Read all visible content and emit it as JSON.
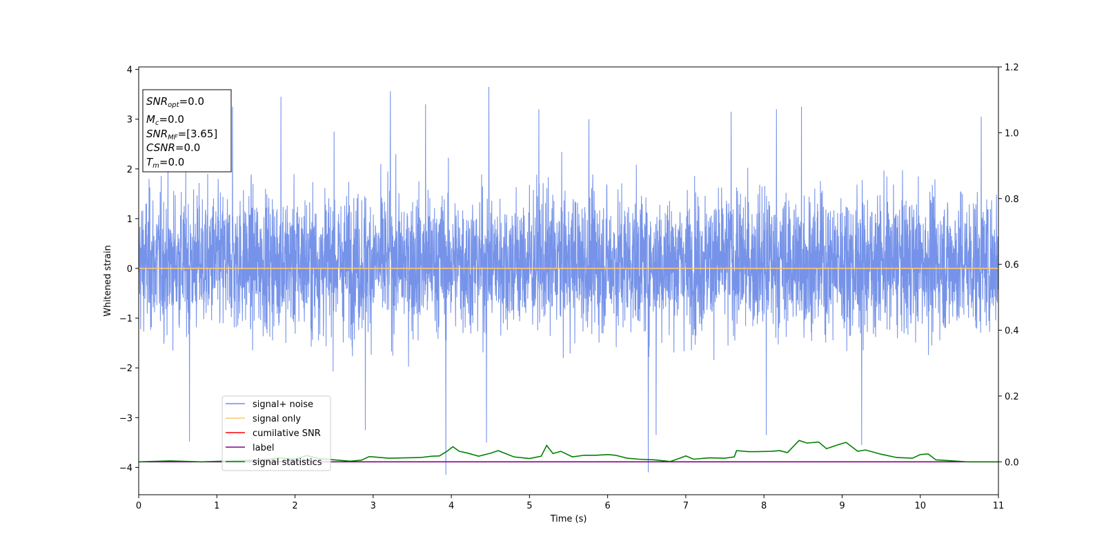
{
  "chart_data": {
    "type": "line",
    "xlabel": "Time (s)",
    "ylabel": "Whitened strain",
    "xlim": [
      0,
      11
    ],
    "ylim": [
      -4.55,
      4.05
    ],
    "y2lim": [
      -0.1,
      1.2
    ],
    "x_ticks": [
      0,
      1,
      2,
      3,
      4,
      5,
      6,
      7,
      8,
      9,
      10,
      11
    ],
    "y_ticks": [
      -4,
      -3,
      -2,
      -1,
      0,
      1,
      2,
      3,
      4
    ],
    "y_tick_labels": [
      "−4",
      "−3",
      "−2",
      "−1",
      "0",
      "1",
      "2",
      "3",
      "4"
    ],
    "y2_ticks": [
      0.0,
      0.2,
      0.4,
      0.6,
      0.8,
      1.0,
      1.2
    ],
    "y2_tick_labels": [
      "0.0",
      "0.2",
      "0.4",
      "0.6",
      "0.8",
      "1.0",
      "1.2"
    ],
    "legend_position": "lower-left",
    "legend": [
      {
        "label": "signal+ noise",
        "color": "#6f8de8"
      },
      {
        "label": "signal only",
        "color": "#ffc56e"
      },
      {
        "label": "cumilative SNR",
        "color": "#ff0000"
      },
      {
        "label": "label",
        "color": "#800080"
      },
      {
        "label": "signal statistics",
        "color": "#008000"
      }
    ],
    "info_box": [
      {
        "main": "SNR",
        "sub": "opt",
        "rest": "=0.0"
      },
      {
        "main": "M",
        "sub": "c",
        "rest": "=0.0"
      },
      {
        "main": "SNR",
        "sub": "MF",
        "rest": "=[3.65]"
      },
      {
        "main": "CSNR",
        "sub": "",
        "rest": "=0.0"
      },
      {
        "main": "T",
        "sub": "m",
        "rest": "=0.0"
      }
    ],
    "series": [
      {
        "name": "signal+ noise",
        "axis": "left",
        "color": "#6f8de8",
        "kind": "noise",
        "envelope_note": "dense whitened noise, roughly within -2.5..2.8 with spikes",
        "spikes": [
          [
            0.65,
            -3.48
          ],
          [
            1.2,
            3.25
          ],
          [
            1.82,
            3.45
          ],
          [
            2.5,
            2.75
          ],
          [
            2.9,
            -3.25
          ],
          [
            3.22,
            3.56
          ],
          [
            3.67,
            3.3
          ],
          [
            3.93,
            -4.15
          ],
          [
            4.45,
            -3.5
          ],
          [
            4.48,
            3.65
          ],
          [
            5.12,
            3.2
          ],
          [
            5.76,
            3.0
          ],
          [
            6.52,
            -4.1
          ],
          [
            6.62,
            -3.35
          ],
          [
            7.58,
            3.15
          ],
          [
            8.03,
            -3.35
          ],
          [
            8.16,
            3.2
          ],
          [
            8.48,
            3.25
          ],
          [
            9.25,
            -3.55
          ],
          [
            10.78,
            3.05
          ]
        ]
      },
      {
        "name": "signal only",
        "axis": "left",
        "color": "#ffc56e",
        "x": [
          0,
          11
        ],
        "y": [
          0,
          0
        ]
      },
      {
        "name": "label",
        "axis": "right",
        "color": "#800080",
        "x": [
          0,
          11
        ],
        "y": [
          0,
          0
        ]
      },
      {
        "name": "signal statistics",
        "axis": "right",
        "color": "#008000",
        "x": [
          0,
          0.4,
          0.8,
          1.2,
          1.6,
          1.8,
          2.0,
          2.15,
          2.3,
          2.5,
          2.7,
          2.85,
          2.95,
          3.2,
          3.4,
          3.6,
          3.75,
          3.85,
          3.95,
          4.02,
          4.1,
          4.2,
          4.35,
          4.5,
          4.6,
          4.8,
          5.0,
          5.15,
          5.22,
          5.3,
          5.4,
          5.55,
          5.7,
          5.85,
          6.0,
          6.1,
          6.25,
          6.4,
          6.6,
          6.8,
          6.9,
          7.0,
          7.1,
          7.3,
          7.5,
          7.62,
          7.65,
          7.8,
          7.9,
          8.1,
          8.2,
          8.3,
          8.45,
          8.55,
          8.7,
          8.8,
          8.95,
          9.05,
          9.2,
          9.3,
          9.5,
          9.7,
          9.9,
          10.0,
          10.1,
          10.2,
          10.35,
          10.6,
          11.0
        ],
        "y": [
          0.0,
          0.003,
          0.0,
          0.003,
          0.006,
          0.012,
          0.008,
          0.019,
          0.01,
          0.006,
          0.002,
          0.005,
          0.016,
          0.011,
          0.012,
          0.013,
          0.017,
          0.018,
          0.033,
          0.046,
          0.032,
          0.027,
          0.017,
          0.026,
          0.034,
          0.015,
          0.01,
          0.017,
          0.05,
          0.025,
          0.032,
          0.015,
          0.02,
          0.02,
          0.022,
          0.02,
          0.011,
          0.008,
          0.006,
          0.001,
          0.009,
          0.018,
          0.008,
          0.012,
          0.011,
          0.015,
          0.034,
          0.031,
          0.031,
          0.032,
          0.034,
          0.028,
          0.065,
          0.057,
          0.06,
          0.04,
          0.052,
          0.059,
          0.032,
          0.036,
          0.023,
          0.013,
          0.011,
          0.022,
          0.024,
          0.006,
          0.004,
          0.0,
          0.0
        ]
      }
    ]
  }
}
